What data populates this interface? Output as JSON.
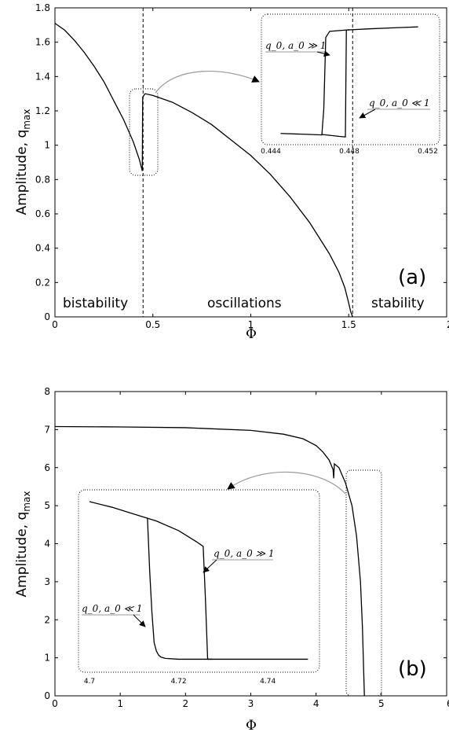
{
  "chart_data": [
    {
      "type": "line",
      "panel_label": "(a)",
      "xlabel": "Φ",
      "ylabel": "Amplitude, q",
      "ylabel_sub": "max",
      "xlim": [
        0,
        2
      ],
      "ylim": [
        0,
        1.8
      ],
      "x_ticks": [
        "0",
        "0.5",
        "1",
        "1.5",
        "2"
      ],
      "y_ticks": [
        "0",
        "0.2",
        "0.4",
        "0.6",
        "0.8",
        "1",
        "1.2",
        "1.4",
        "1.6",
        "1.8"
      ],
      "grid": false,
      "vlines": [
        0.45,
        1.52
      ],
      "regions": [
        "bistability",
        "oscillations",
        "stability"
      ],
      "series": [
        {
          "x": [
            0,
            0.05,
            0.1,
            0.15,
            0.2,
            0.25,
            0.3,
            0.35,
            0.4,
            0.43,
            0.446,
            0.447,
            0.448,
            0.46,
            0.5,
            0.6,
            0.7,
            0.8,
            0.9,
            1.0,
            1.1,
            1.2,
            1.3,
            1.4,
            1.45,
            1.48,
            1.5,
            1.51,
            1.52
          ],
          "y": [
            1.71,
            1.67,
            1.61,
            1.54,
            1.46,
            1.37,
            1.26,
            1.15,
            1.02,
            0.92,
            0.85,
            1.07,
            1.28,
            1.3,
            1.29,
            1.25,
            1.19,
            1.12,
            1.03,
            0.94,
            0.83,
            0.7,
            0.55,
            0.37,
            0.26,
            0.17,
            0.08,
            0.03,
            0.0
          ]
        }
      ],
      "inset": {
        "xlim": [
          0.444,
          0.452
        ],
        "x_ticks": [
          "0.444",
          "0.448",
          "0.452"
        ],
        "labels": [
          "q_0, a_0 ≫ 1",
          "q_0, a_0 ≪ 1"
        ],
        "series": [
          {
            "x": [
              0.4445,
              0.446,
              0.4466,
              0.4467,
              0.4468,
              0.447,
              0.4478,
              0.449,
              0.4505,
              0.4515
            ],
            "y": [
              0.85,
              0.846,
              0.844,
              0.95,
              1.24,
              1.265,
              1.27,
              1.275,
              1.28,
              1.283
            ]
          },
          {
            "x": [
              0.4466,
              0.4475,
              0.4478,
              0.44785,
              0.448
            ],
            "y": [
              0.846,
              0.838,
              0.836,
              1.27,
              1.272
            ]
          }
        ]
      }
    },
    {
      "type": "line",
      "panel_label": "(b)",
      "xlabel": "Φ",
      "ylabel": "Amplitude, q",
      "ylabel_sub": "max",
      "xlim": [
        0,
        6
      ],
      "ylim": [
        0,
        8
      ],
      "x_ticks": [
        "0",
        "1",
        "2",
        "3",
        "4",
        "5",
        "6"
      ],
      "y_ticks": [
        "0",
        "1",
        "2",
        "3",
        "4",
        "5",
        "6",
        "7",
        "8"
      ],
      "grid": false,
      "series": [
        {
          "x": [
            0,
            1,
            2,
            3,
            3.5,
            3.8,
            4.0,
            4.1,
            4.2,
            4.26,
            4.27,
            4.28,
            4.35,
            4.45,
            4.55,
            4.62,
            4.68,
            4.71,
            4.73,
            4.74
          ],
          "y": [
            7.08,
            7.07,
            7.05,
            6.98,
            6.88,
            6.76,
            6.58,
            6.42,
            6.2,
            5.95,
            5.72,
            6.1,
            6.0,
            5.6,
            5.0,
            4.2,
            3.0,
            1.8,
            0.6,
            0.0
          ]
        }
      ],
      "inset": {
        "xlim": [
          4.7,
          4.75
        ],
        "x_ticks": [
          "4.7",
          "4.72",
          "4.74"
        ],
        "labels": [
          "q_0, a_0 ≫ 1",
          "q_0, a_0 ≪ 1"
        ],
        "series": [
          {
            "x": [
              4.7,
              4.705,
              4.71,
              4.715,
              4.72,
              4.724,
              4.7255,
              4.726,
              4.7265,
              4.7275
            ],
            "y": [
              6.0,
              5.8,
              5.55,
              5.3,
              4.95,
              4.55,
              4.38,
              2.5,
              0.3,
              0.3
            ]
          },
          {
            "x": [
              4.713,
              4.7135,
              4.714,
              4.7145,
              4.715,
              4.7155,
              4.716,
              4.717,
              4.72,
              4.73,
              4.749
            ],
            "y": [
              5.42,
              3.5,
              2.0,
              0.9,
              0.6,
              0.45,
              0.38,
              0.33,
              0.3,
              0.3,
              0.3
            ]
          }
        ]
      }
    }
  ]
}
